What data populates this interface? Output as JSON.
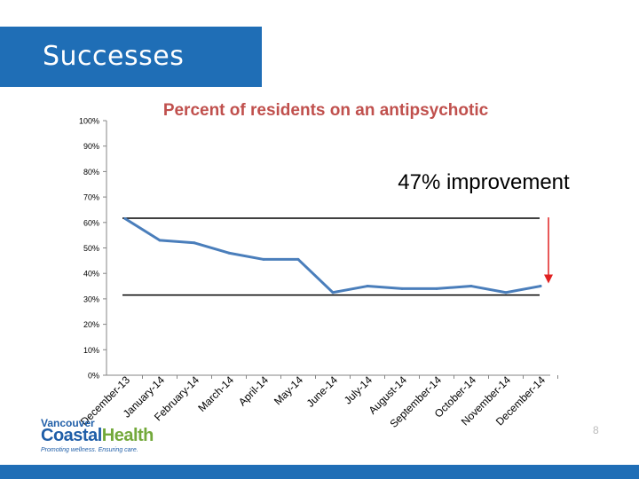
{
  "slide": {
    "title": "Successes",
    "page_number": "8",
    "logo": {
      "line1": "Vancouver",
      "line2a": "Coastal",
      "line2b": "Health",
      "tagline": "Promoting wellness. Ensuring care."
    },
    "colors": {
      "banner": "#1f6eb6",
      "line": "#4a7ebb",
      "arrow": "#e02020",
      "title_text": "#c0504d"
    }
  },
  "chart_data": {
    "type": "line",
    "title": "Percent of residents on an antipsychotic",
    "annotation": "47% improvement",
    "xlabel": "",
    "ylabel": "",
    "ylim": [
      0,
      100
    ],
    "y_ticks": [
      "0%",
      "10%",
      "20%",
      "30%",
      "40%",
      "50%",
      "60%",
      "70%",
      "80%",
      "90%",
      "100%"
    ],
    "categories": [
      "December-13",
      "January-14",
      "February-14",
      "March-14",
      "April-14",
      "May-14",
      "June-14",
      "July-14",
      "August-14",
      "September-14",
      "October-14",
      "November-14",
      "December-14"
    ],
    "series": [
      {
        "values": [
          61.5,
          53,
          52,
          48,
          45.5,
          45.5,
          32.5,
          35,
          34,
          34,
          35,
          32.5,
          35
        ]
      }
    ],
    "reference_lines": [
      62,
      31.5
    ],
    "grid": false,
    "legend": "none"
  }
}
